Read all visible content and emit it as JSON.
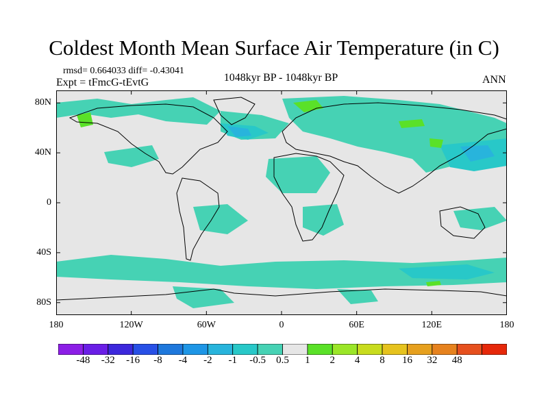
{
  "title": "Coldest Month Mean Surface Air Temperature (in C)",
  "stats": "rmsd= 0.664033 diff= -0.43041",
  "expt": "Expt = tFmcG-tEvtG",
  "period": "1048kyr BP - 1048kyr BP",
  "season": "ANN",
  "map": {
    "lat_ticks": [
      {
        "label": "80N",
        "lat": 80
      },
      {
        "label": "40N",
        "lat": 40
      },
      {
        "label": "0",
        "lat": 0
      },
      {
        "label": "40S",
        "lat": -40
      },
      {
        "label": "80S",
        "lat": -80
      }
    ],
    "lon_ticks": [
      {
        "label": "180",
        "lon": -180
      },
      {
        "label": "120W",
        "lon": -120
      },
      {
        "label": "60W",
        "lon": -60
      },
      {
        "label": "0",
        "lon": 0
      },
      {
        "label": "60E",
        "lon": 60
      },
      {
        "label": "120E",
        "lon": 120
      },
      {
        "label": "180",
        "lon": 180
      }
    ],
    "background_color": "#e6e6e6"
  },
  "colorbar": {
    "colors": [
      "#8c1ee6",
      "#6a1ee6",
      "#3c28dc",
      "#2850e6",
      "#1e78dc",
      "#1e96e6",
      "#28b4dc",
      "#28c8c8",
      "#46d2b4",
      "#e6e6e6",
      "#5ae128",
      "#9be628",
      "#c8dc1e",
      "#e6c31e",
      "#e6a01e",
      "#e6821e",
      "#e6501e",
      "#e6280a"
    ],
    "labels": [
      "-48",
      "-32",
      "-16",
      "-8",
      "-4",
      "-2",
      "-1",
      "-0.5",
      "0.5",
      "1",
      "2",
      "4",
      "8",
      "16",
      "32",
      "48"
    ]
  }
}
